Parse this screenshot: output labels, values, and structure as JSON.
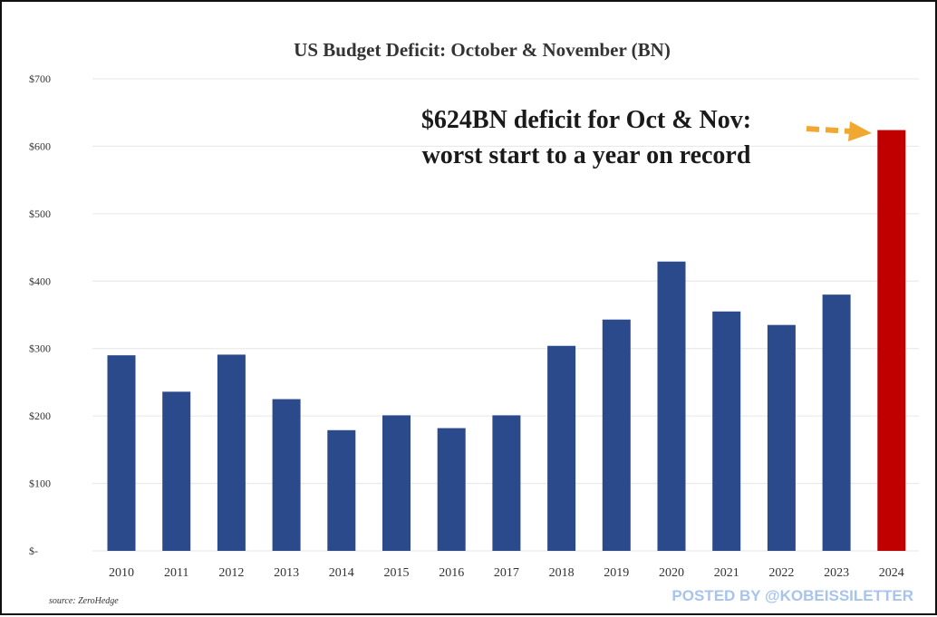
{
  "chart_data": {
    "type": "bar",
    "title": "US Budget Deficit: October & November (BN)",
    "categories": [
      "2010",
      "2011",
      "2012",
      "2013",
      "2014",
      "2015",
      "2016",
      "2017",
      "2018",
      "2019",
      "2020",
      "2021",
      "2022",
      "2023",
      "2024"
    ],
    "values": [
      290,
      236,
      291,
      225,
      179,
      201,
      182,
      201,
      304,
      343,
      429,
      355,
      335,
      380,
      624
    ],
    "ylim": [
      0,
      700
    ],
    "yticks": [
      0,
      100,
      200,
      300,
      400,
      500,
      600,
      700
    ],
    "ytick_labels": [
      "$-",
      "$100",
      "$200",
      "$300",
      "$400",
      "$500",
      "$600",
      "$700"
    ],
    "xlabel": "",
    "ylabel": "",
    "grid": true,
    "colors": {
      "bar": "#2b4a8b",
      "highlight": "#c00000",
      "arrow": "#f0a830",
      "grid": "#e6e6e6"
    },
    "highlight_index": 14,
    "annotation": {
      "line1": "$624BN deficit for Oct & Nov:",
      "line2": "worst start to a year on record"
    }
  },
  "source": "source: ZeroHedge",
  "watermark": "POSTED BY @KOBEISSILETTER"
}
